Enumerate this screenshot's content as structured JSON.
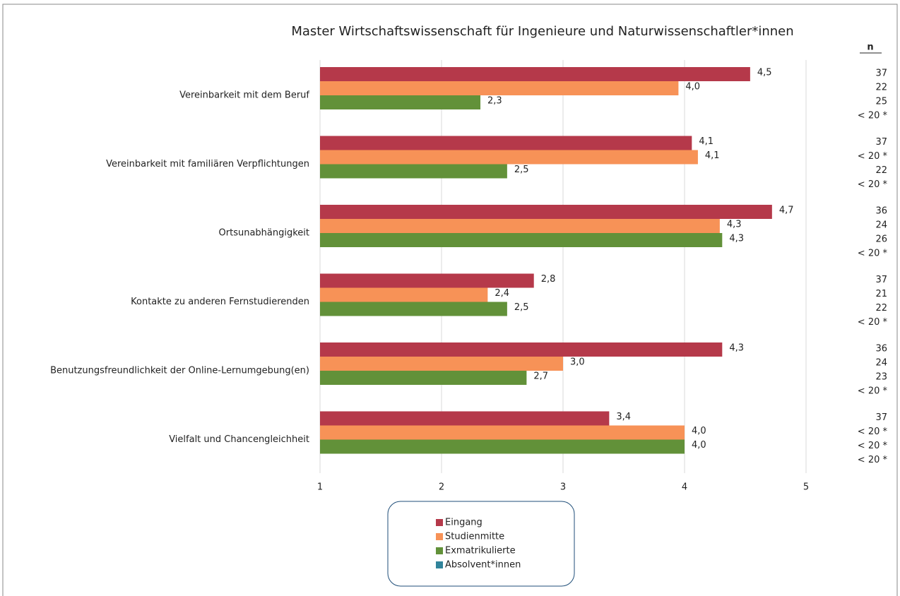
{
  "chart_data": {
    "type": "bar",
    "orientation": "horizontal",
    "title": "Master Wirtschaftswissenschaft für Ingenieure und Naturwissenschaftler*innen",
    "categories": [
      "Vereinbarkeit mit dem Beruf",
      "Vereinbarkeit mit familiären Verpflichtungen",
      "Ortsunabhängigkeit",
      "Kontakte zu anderen Fernstudierenden",
      "Benutzungsfreundlichkeit der Online-Lernumgebung(en)",
      "Vielfalt und Chancengleichheit"
    ],
    "series": [
      {
        "name": "Eingang",
        "color": "#b5394a",
        "values": [
          4.54,
          4.06,
          4.72,
          2.76,
          4.31,
          3.38
        ],
        "value_labels": [
          "4,5",
          "4,1",
          "4,7",
          "2,8",
          "4,3",
          "3,4"
        ]
      },
      {
        "name": "Studienmitte",
        "color": "#f79257",
        "values": [
          3.95,
          4.11,
          4.29,
          2.38,
          3.0,
          4.0
        ],
        "value_labels": [
          "4,0",
          "4,1",
          "4,3",
          "2,4",
          "3,0",
          "4,0"
        ]
      },
      {
        "name": "Exmatrikulierte",
        "color": "#629139",
        "values": [
          2.32,
          2.54,
          4.31,
          2.54,
          2.7,
          4.0
        ],
        "value_labels": [
          "2,3",
          "2,5",
          "4,3",
          "2,5",
          "2,7",
          "4,0"
        ]
      },
      {
        "name": "Absolvent*innen",
        "color": "#31849b",
        "values": [
          null,
          null,
          null,
          null,
          null,
          null
        ]
      }
    ],
    "xlim": [
      1,
      5
    ],
    "xticks": [
      1,
      2,
      3,
      4,
      5
    ],
    "grid": true,
    "n_header": "n",
    "n_values": [
      [
        "37",
        "22",
        "25",
        "< 20 *"
      ],
      [
        "37",
        "< 20 *",
        "22",
        "< 20 *"
      ],
      [
        "36",
        "24",
        "26",
        "< 20 *"
      ],
      [
        "37",
        "21",
        "22",
        "< 20 *"
      ],
      [
        "36",
        "24",
        "23",
        "< 20 *"
      ],
      [
        "37",
        "< 20 *",
        "< 20 *",
        "< 20 *"
      ]
    ]
  }
}
